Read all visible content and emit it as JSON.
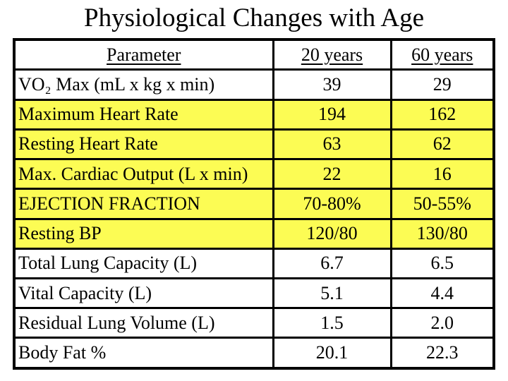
{
  "slide": {
    "title": "Physiological Changes with Age"
  },
  "table": {
    "headers": [
      "Parameter",
      "20 years",
      "60 years"
    ],
    "rows": [
      {
        "parameter": "VO₂ Max (mL x kg x min)",
        "age20": "39",
        "age60": "29",
        "highlight": false
      },
      {
        "parameter": "Maximum Heart Rate",
        "age20": "194",
        "age60": "162",
        "highlight": true
      },
      {
        "parameter": "Resting Heart Rate",
        "age20": "63",
        "age60": "62",
        "highlight": true
      },
      {
        "parameter": "Max. Cardiac Output (L x min)",
        "age20": "22",
        "age60": "16",
        "highlight": true
      },
      {
        "parameter": "EJECTION FRACTION",
        "age20": "70-80%",
        "age60": "50-55%",
        "highlight": true
      },
      {
        "parameter": "Resting BP",
        "age20": "120/80",
        "age60": "130/80",
        "highlight": true
      },
      {
        "parameter": "Total Lung Capacity (L)",
        "age20": "6.7",
        "age60": "6.5",
        "highlight": false
      },
      {
        "parameter": "Vital Capacity (L)",
        "age20": "5.1",
        "age60": "4.4",
        "highlight": false
      },
      {
        "parameter": "Residual Lung Volume (L)",
        "age20": "1.5",
        "age60": "2.0",
        "highlight": false
      },
      {
        "parameter": "Body Fat %",
        "age20": "20.1",
        "age60": "22.3",
        "highlight": false
      }
    ]
  },
  "colors": {
    "highlight_yellow": "#FCFC54",
    "border_black": "#000000",
    "background_white": "#FFFFFF",
    "text_black": "#000000"
  }
}
